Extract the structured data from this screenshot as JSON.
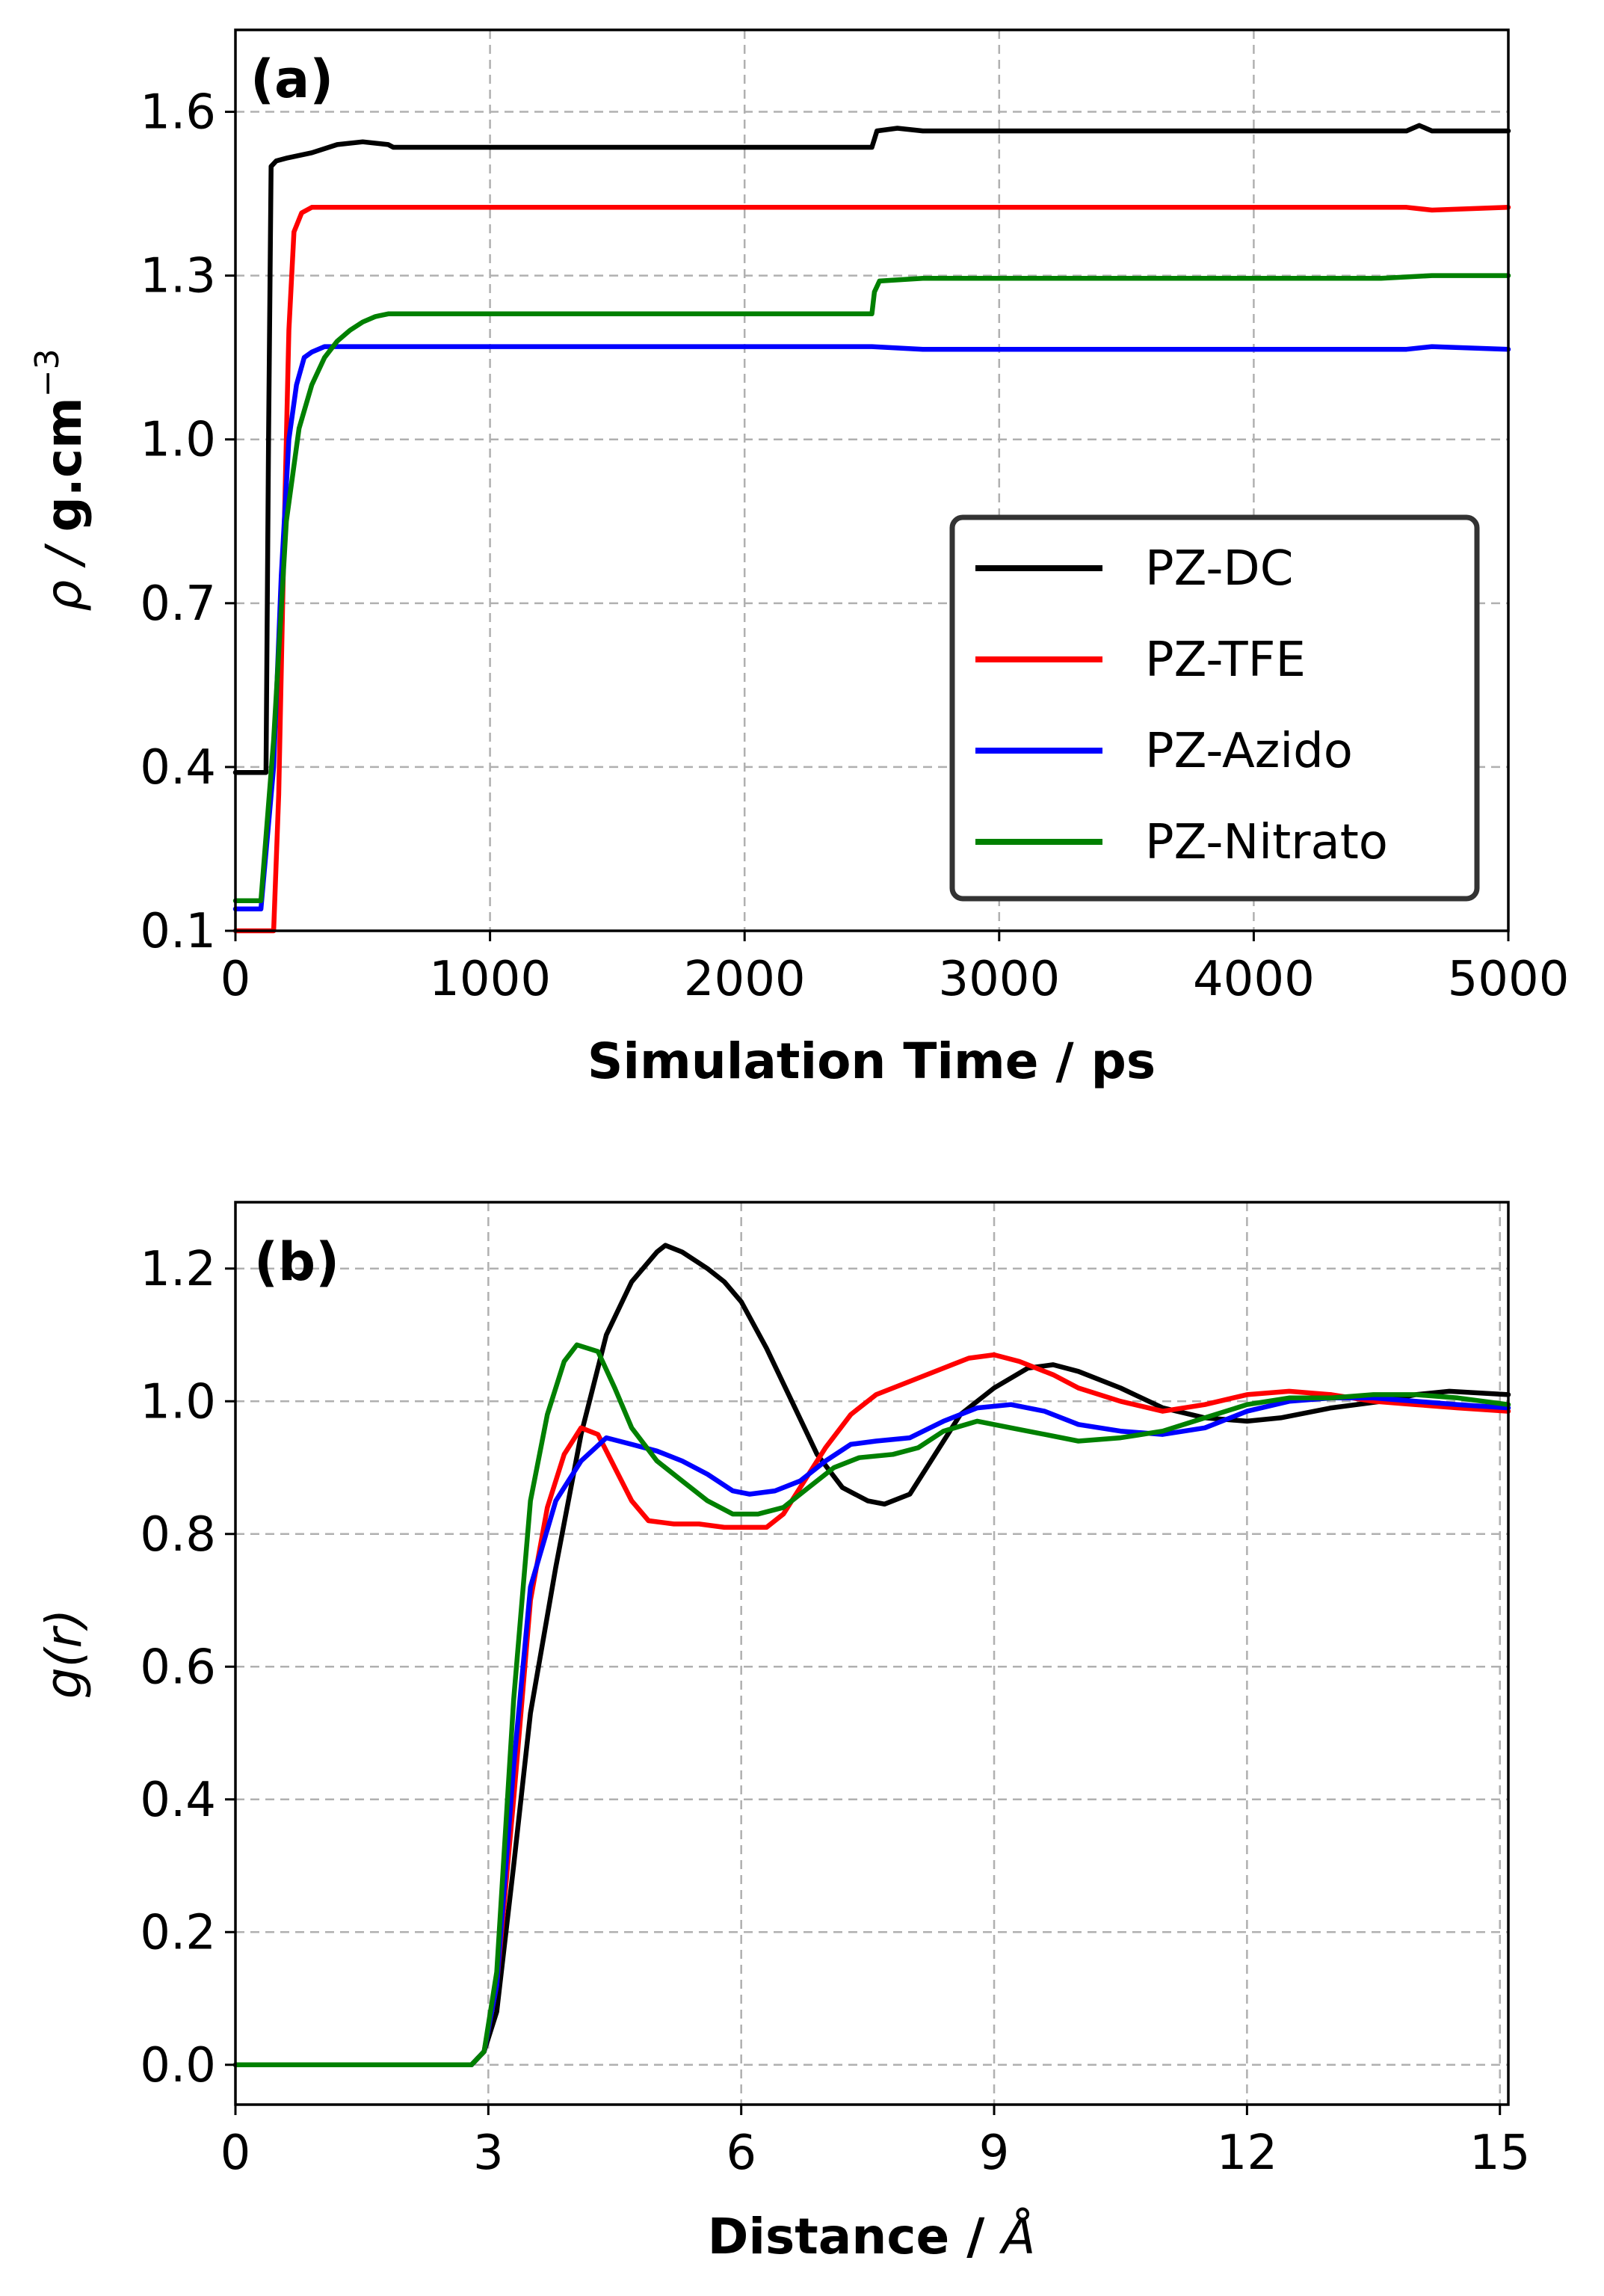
{
  "chart_data": [
    {
      "panel": "(a)",
      "type": "line",
      "xlabel": "Simulation Time / ps",
      "ylabel_prefix": "ρ / ",
      "ylabel_bold": "g.cm",
      "ylabel_sup": "−3",
      "xlim": [
        0,
        5000
      ],
      "ylim": [
        0.1,
        1.75
      ],
      "xticks": [
        0,
        1000,
        2000,
        3000,
        4000,
        5000
      ],
      "xtick_labels": [
        "0",
        "1000",
        "2000",
        "3000",
        "4000",
        "5000"
      ],
      "yticks": [
        0.1,
        0.4,
        0.7,
        1.0,
        1.3,
        1.6
      ],
      "ytick_labels": [
        "0.1",
        "0.4",
        "0.7",
        "1.0",
        "1.3",
        "1.6"
      ],
      "grid": true,
      "legend_position": "lower-right",
      "legend": [
        "PZ-DC",
        "PZ-TFE",
        "PZ-Azido",
        "PZ-Nitrato"
      ],
      "series": [
        {
          "name": "PZ-DC",
          "color": "#000000",
          "x": [
            0,
            100,
            120,
            130,
            140,
            160,
            200,
            300,
            400,
            500,
            600,
            620,
            2500,
            2510,
            2520,
            2600,
            2700,
            4600,
            4650,
            4700,
            5000
          ],
          "y": [
            0.39,
            0.39,
            0.39,
            1.0,
            1.5,
            1.51,
            1.515,
            1.525,
            1.54,
            1.545,
            1.54,
            1.535,
            1.535,
            1.55,
            1.565,
            1.57,
            1.565,
            1.565,
            1.575,
            1.565,
            1.565
          ]
        },
        {
          "name": "PZ-TFE",
          "color": "#ff0000",
          "x": [
            0,
            150,
            170,
            190,
            210,
            230,
            260,
            300,
            600,
            2500,
            2600,
            4600,
            4700,
            5000
          ],
          "y": [
            0.1,
            0.1,
            0.35,
            0.8,
            1.2,
            1.38,
            1.415,
            1.425,
            1.425,
            1.425,
            1.425,
            1.425,
            1.42,
            1.425
          ]
        },
        {
          "name": "PZ-Azido",
          "color": "#0000ff",
          "x": [
            0,
            100,
            150,
            180,
            210,
            240,
            270,
            300,
            350,
            400,
            600,
            2500,
            2700,
            4600,
            4700,
            5000
          ],
          "y": [
            0.14,
            0.14,
            0.4,
            0.75,
            1.0,
            1.1,
            1.15,
            1.16,
            1.17,
            1.17,
            1.17,
            1.17,
            1.165,
            1.165,
            1.17,
            1.165
          ]
        },
        {
          "name": "PZ-Nitrato",
          "color": "#008000",
          "x": [
            0,
            100,
            150,
            200,
            250,
            300,
            350,
            400,
            450,
            500,
            550,
            600,
            700,
            2500,
            2510,
            2530,
            2700,
            3000,
            4500,
            4700,
            5000
          ],
          "y": [
            0.155,
            0.155,
            0.45,
            0.85,
            1.02,
            1.1,
            1.15,
            1.18,
            1.2,
            1.215,
            1.225,
            1.23,
            1.23,
            1.23,
            1.27,
            1.29,
            1.295,
            1.295,
            1.295,
            1.3,
            1.3
          ]
        }
      ]
    },
    {
      "panel": "(b)",
      "type": "line",
      "xlabel_prefix": "Distance / ",
      "xlabel_unit": "Å",
      "ylabel": "g(r)",
      "xlim": [
        0,
        15.1
      ],
      "ylim": [
        -0.06,
        1.3
      ],
      "xticks": [
        0,
        3,
        6,
        9,
        12,
        15
      ],
      "xtick_labels": [
        "0",
        "3",
        "6",
        "9",
        "12",
        "15"
      ],
      "yticks": [
        0.0,
        0.2,
        0.4,
        0.6,
        0.8,
        1.0,
        1.2
      ],
      "ytick_labels": [
        "0.0",
        "0.2",
        "0.4",
        "0.6",
        "0.8",
        "1.0",
        "1.2"
      ],
      "grid": true,
      "series": [
        {
          "name": "PZ-DC",
          "color": "#000000",
          "x": [
            0,
            2.8,
            2.95,
            3.1,
            3.3,
            3.5,
            3.8,
            4.1,
            4.4,
            4.7,
            5.0,
            5.1,
            5.3,
            5.6,
            5.8,
            6.0,
            6.3,
            6.6,
            6.9,
            7.2,
            7.5,
            7.7,
            8.0,
            8.3,
            8.6,
            9.0,
            9.4,
            9.7,
            10.0,
            10.5,
            11.0,
            11.5,
            12.0,
            12.4,
            13.0,
            13.6,
            14.0,
            14.4,
            15.1
          ],
          "y": [
            0,
            0,
            0.02,
            0.08,
            0.3,
            0.53,
            0.75,
            0.95,
            1.1,
            1.18,
            1.225,
            1.235,
            1.225,
            1.2,
            1.18,
            1.15,
            1.08,
            1.0,
            0.92,
            0.87,
            0.85,
            0.845,
            0.86,
            0.92,
            0.98,
            1.02,
            1.05,
            1.055,
            1.045,
            1.02,
            0.99,
            0.975,
            0.97,
            0.975,
            0.99,
            1.0,
            1.01,
            1.015,
            1.01
          ]
        },
        {
          "name": "PZ-TFE",
          "color": "#ff0000",
          "x": [
            0,
            2.8,
            2.95,
            3.1,
            3.3,
            3.5,
            3.7,
            3.9,
            4.1,
            4.3,
            4.5,
            4.7,
            4.9,
            5.2,
            5.5,
            5.8,
            6.1,
            6.3,
            6.5,
            6.7,
            7.0,
            7.3,
            7.6,
            8.0,
            8.4,
            8.7,
            9.0,
            9.3,
            9.7,
            10.0,
            10.5,
            11.0,
            11.5,
            12.0,
            12.5,
            13.0,
            13.5,
            14.0,
            14.5,
            15.1
          ],
          "y": [
            0,
            0,
            0.02,
            0.12,
            0.4,
            0.7,
            0.84,
            0.92,
            0.96,
            0.95,
            0.9,
            0.85,
            0.82,
            0.815,
            0.815,
            0.81,
            0.81,
            0.81,
            0.83,
            0.87,
            0.93,
            0.98,
            1.01,
            1.03,
            1.05,
            1.065,
            1.07,
            1.06,
            1.04,
            1.02,
            1.0,
            0.985,
            0.995,
            1.01,
            1.015,
            1.01,
            1.0,
            0.995,
            0.99,
            0.985
          ]
        },
        {
          "name": "PZ-Azido",
          "color": "#0000ff",
          "x": [
            0,
            2.8,
            2.95,
            3.1,
            3.3,
            3.5,
            3.8,
            4.1,
            4.4,
            4.7,
            5.0,
            5.3,
            5.6,
            5.9,
            6.1,
            6.4,
            6.7,
            7.0,
            7.3,
            7.6,
            8.0,
            8.4,
            8.8,
            9.2,
            9.6,
            10.0,
            10.5,
            11.0,
            11.5,
            12.0,
            12.5,
            13.0,
            13.5,
            14.0,
            14.5,
            15.1
          ],
          "y": [
            0,
            0,
            0.02,
            0.12,
            0.45,
            0.72,
            0.85,
            0.91,
            0.945,
            0.935,
            0.925,
            0.91,
            0.89,
            0.865,
            0.86,
            0.865,
            0.88,
            0.91,
            0.935,
            0.94,
            0.945,
            0.97,
            0.99,
            0.995,
            0.985,
            0.965,
            0.955,
            0.95,
            0.96,
            0.985,
            1.0,
            1.005,
            1.005,
            1.0,
            0.995,
            0.99
          ]
        },
        {
          "name": "PZ-Nitrato",
          "color": "#008000",
          "x": [
            0,
            2.8,
            2.95,
            3.1,
            3.3,
            3.5,
            3.7,
            3.9,
            4.05,
            4.3,
            4.5,
            4.7,
            5.0,
            5.3,
            5.6,
            5.9,
            6.2,
            6.5,
            6.8,
            7.1,
            7.4,
            7.8,
            8.1,
            8.4,
            8.8,
            9.2,
            9.6,
            10.0,
            10.5,
            11.0,
            11.5,
            12.0,
            12.5,
            13.0,
            13.5,
            14.0,
            14.5,
            15.1
          ],
          "y": [
            0,
            0,
            0.02,
            0.14,
            0.55,
            0.85,
            0.98,
            1.06,
            1.085,
            1.075,
            1.02,
            0.96,
            0.91,
            0.88,
            0.85,
            0.83,
            0.83,
            0.84,
            0.87,
            0.9,
            0.915,
            0.92,
            0.93,
            0.955,
            0.97,
            0.96,
            0.95,
            0.94,
            0.945,
            0.955,
            0.975,
            0.995,
            1.005,
            1.005,
            1.01,
            1.01,
            1.005,
            0.995
          ]
        }
      ]
    }
  ]
}
